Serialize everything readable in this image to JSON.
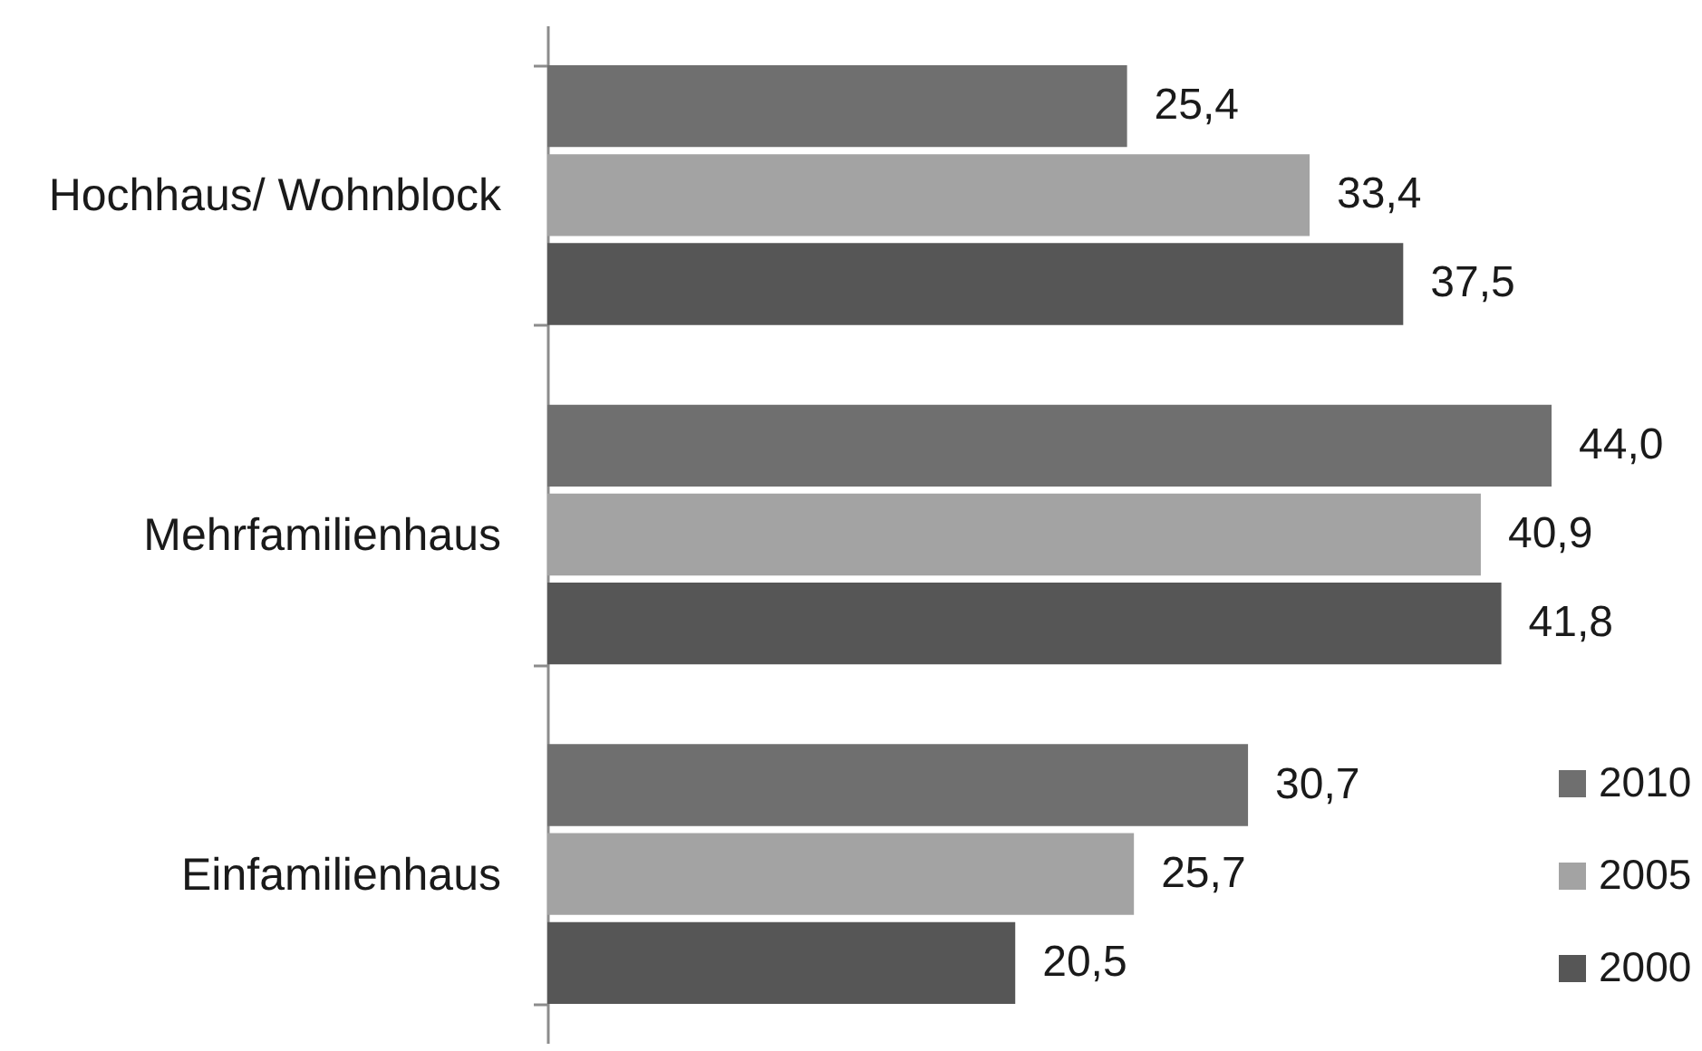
{
  "chart_data": {
    "type": "bar",
    "orientation": "horizontal",
    "categories": [
      "Hochhaus/ Wohnblock",
      "Mehrfamilienhaus",
      "Einfamilienhaus"
    ],
    "series": [
      {
        "name": "2010",
        "color": "#6f6f6f",
        "values": [
          25.4,
          44.0,
          30.7
        ],
        "value_labels": [
          "25,4",
          "44,0",
          "30,7"
        ]
      },
      {
        "name": "2005",
        "color": "#a3a3a3",
        "values": [
          33.4,
          40.9,
          25.7
        ],
        "value_labels": [
          "33,4",
          "40,9",
          "25,7"
        ]
      },
      {
        "name": "2000",
        "color": "#565656",
        "values": [
          37.5,
          41.8,
          20.5
        ],
        "value_labels": [
          "37,5",
          "41,8",
          "20,5"
        ]
      }
    ],
    "legend": "bottom right",
    "grid": false
  }
}
